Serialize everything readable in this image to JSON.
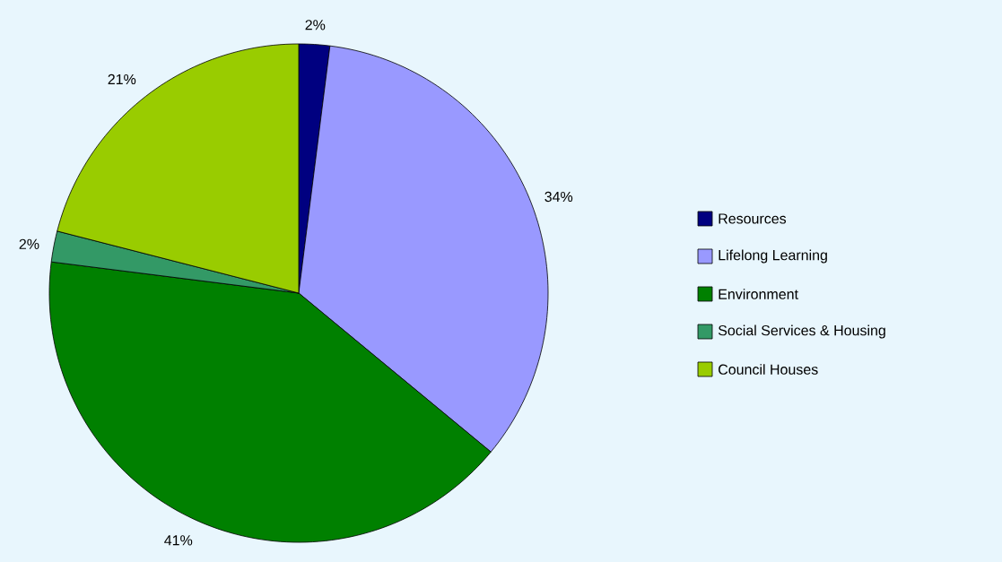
{
  "chart_data": {
    "type": "pie",
    "categories": [
      "Resources",
      "Lifelong Learning",
      "Environment",
      "Social Services & Housing",
      "Council Houses"
    ],
    "values": [
      2,
      34,
      41,
      2,
      21
    ],
    "value_labels": [
      "2%",
      "34%",
      "41%",
      "2%",
      "21%"
    ],
    "colors": [
      "#000080",
      "#9999ff",
      "#008000",
      "#339966",
      "#99cc00"
    ],
    "legend": "right"
  }
}
